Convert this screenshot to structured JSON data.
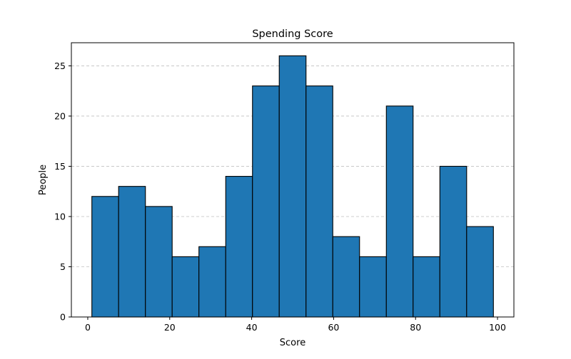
{
  "chart_data": {
    "type": "bar",
    "title": "Spending Score",
    "xlabel": "Score",
    "ylabel": "People",
    "bin_edges": [
      1,
      7.53,
      14.07,
      20.6,
      27.13,
      33.67,
      40.2,
      46.73,
      53.27,
      59.8,
      66.33,
      72.87,
      79.4,
      85.93,
      92.47,
      99
    ],
    "values": [
      12,
      13,
      11,
      6,
      7,
      14,
      23,
      26,
      23,
      8,
      6,
      21,
      6,
      15,
      9
    ],
    "xlim": [
      -4,
      104
    ],
    "ylim": [
      0,
      27.3
    ],
    "xticks": [
      0,
      20,
      40,
      60,
      80,
      100
    ],
    "yticks": [
      0,
      5,
      10,
      15,
      20,
      25
    ],
    "grid": "y-dashed",
    "bar_color": "#1f77b4",
    "edge_color": "#000000",
    "grid_color": "#c0c0c0"
  }
}
